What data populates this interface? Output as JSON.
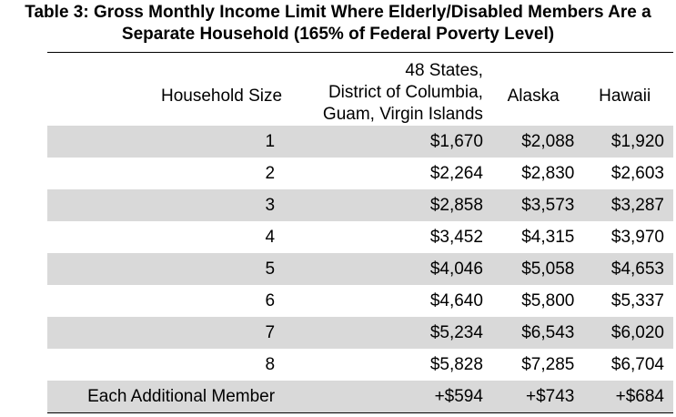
{
  "title": {
    "line1": "Table 3: Gross Monthly Income Limit Where Elderly/Disabled Members Are a",
    "line2": "Separate Household (165% of Federal Poverty Level)"
  },
  "headers": {
    "household_size": "Household Size",
    "states_line1": "48 States,",
    "states_line2": "District of Columbia,",
    "states_line3": "Guam, Virgin Islands",
    "alaska": "Alaska",
    "hawaii": "Hawaii"
  },
  "rows": [
    {
      "size": "1",
      "states": "$1,670",
      "alaska": "$2,088",
      "hawaii": "$1,920"
    },
    {
      "size": "2",
      "states": "$2,264",
      "alaska": "$2,830",
      "hawaii": "$2,603"
    },
    {
      "size": "3",
      "states": "$2,858",
      "alaska": "$3,573",
      "hawaii": "$3,287"
    },
    {
      "size": "4",
      "states": "$3,452",
      "alaska": "$4,315",
      "hawaii": "$3,970"
    },
    {
      "size": "5",
      "states": "$4,046",
      "alaska": "$5,058",
      "hawaii": "$4,653"
    },
    {
      "size": "6",
      "states": "$4,640",
      "alaska": "$5,800",
      "hawaii": "$5,337"
    },
    {
      "size": "7",
      "states": "$5,234",
      "alaska": "$6,543",
      "hawaii": "$6,020"
    },
    {
      "size": "8",
      "states": "$5,828",
      "alaska": "$7,285",
      "hawaii": "$6,704"
    },
    {
      "size": "Each Additional Member",
      "states": "+$594",
      "alaska": "+$743",
      "hawaii": "+$684"
    }
  ],
  "colors": {
    "shaded_row": "#d9d9d9"
  }
}
